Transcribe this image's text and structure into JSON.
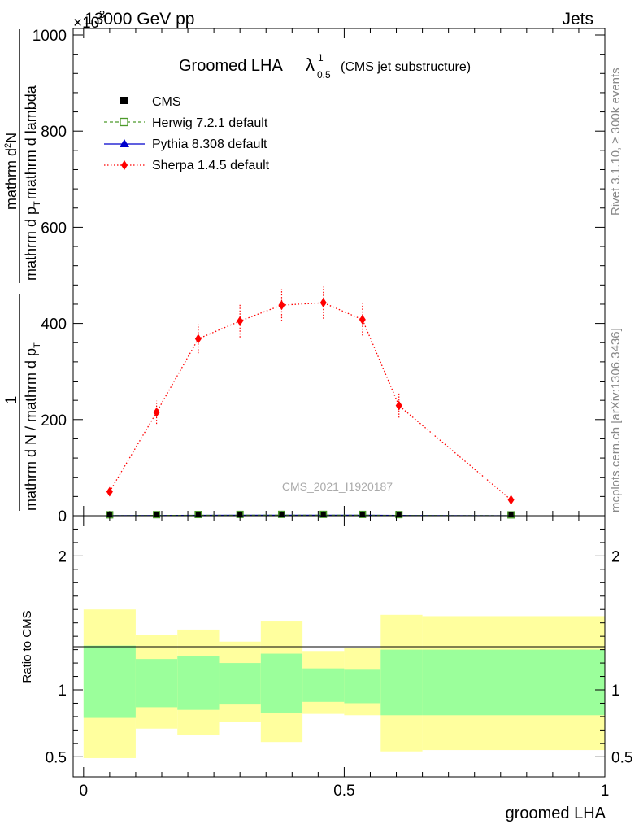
{
  "header": {
    "left": "13000 GeV pp",
    "right": "Jets",
    "exponent_base": "×10",
    "exponent_power": "3"
  },
  "title": {
    "main": "Groomed LHA",
    "lambda": "λ",
    "sup": "1",
    "sub": "0.5",
    "tail": "(CMS jet substructure)"
  },
  "side": {
    "rivet": "Rivet 3.1.10, ≥ 300k events",
    "mcplots": "mcplots.cern.ch [arXiv:1306.3436]"
  },
  "watermark": "CMS_2021_I1920187",
  "legend": [
    {
      "label": "CMS",
      "color": "#000000",
      "marker": "square-filled"
    },
    {
      "label": "Herwig 7.2.1 default",
      "color": "#4c9a2a",
      "marker": "square-open"
    },
    {
      "label": "Pythia 8.308 default",
      "color": "#0000cc",
      "marker": "triangle"
    },
    {
      "label": "Sherpa 1.4.5 default",
      "color": "#ff0000",
      "marker": "diamond"
    }
  ],
  "ylabel": {
    "numerator_1": "1",
    "denominator_1": "mathrm d N / mathrm d p",
    "denominator_1_sub": "T",
    "numerator_2": "mathrm d",
    "numerator_2_sup": "2",
    "numerator_2_tail": "N",
    "denominator_2": "mathrm d p",
    "denominator_2_sub": "T",
    "denominator_2_tail": "mathrm d lambda"
  },
  "ratio_ylabel": "Ratio to CMS",
  "xlabel": "groomed LHA",
  "chart_data": {
    "type": "line",
    "main": {
      "xlim": [
        -0.02,
        1.0
      ],
      "ylim": [
        0,
        1000
      ],
      "yscale_note": "×10^3",
      "yticks": [
        0,
        200,
        400,
        600,
        800,
        1000
      ],
      "ytick_labels": [
        "0",
        "200",
        "400",
        "600",
        "800",
        "1000"
      ],
      "series": [
        {
          "name": "Sherpa 1.4.5 default",
          "style": "dotted",
          "x": [
            0.05,
            0.14,
            0.22,
            0.3,
            0.38,
            0.46,
            0.535,
            0.605,
            0.82
          ],
          "y": [
            50,
            215,
            368,
            405,
            438,
            443,
            408,
            229,
            33
          ],
          "yerr": [
            9,
            24,
            30,
            34,
            33,
            33,
            33,
            25,
            4
          ]
        },
        {
          "name": "CMS",
          "x": [
            0.05,
            0.14,
            0.22,
            0.3,
            0.38,
            0.46,
            0.535,
            0.605,
            0.82
          ],
          "y": [
            0.2,
            0.5,
            0.8,
            1.0,
            1.1,
            1.1,
            1.0,
            0.6,
            0.08
          ]
        },
        {
          "name": "Herwig 7.2.1 default",
          "style": "dashed",
          "x": [
            0.05,
            0.14,
            0.22,
            0.3,
            0.38,
            0.46,
            0.535,
            0.605,
            0.82
          ],
          "y": [
            0.2,
            0.5,
            0.8,
            1.0,
            1.1,
            1.1,
            1.0,
            0.6,
            0.08
          ]
        },
        {
          "name": "Pythia 8.308 default",
          "style": "solid",
          "x": [
            0.05,
            0.14,
            0.22,
            0.3,
            0.38,
            0.46,
            0.535,
            0.605,
            0.82
          ],
          "y": [
            0.2,
            0.5,
            0.8,
            1.0,
            1.1,
            1.1,
            1.0,
            0.6,
            0.08
          ]
        }
      ]
    },
    "ratio": {
      "ylim": [
        0.35,
        2.3
      ],
      "yticks": [
        0.5,
        1,
        2
      ],
      "ytick_labels": [
        "0.5",
        "1",
        "2"
      ],
      "xticks": [
        0,
        0.5,
        1
      ],
      "xtick_labels": [
        "0",
        "0.5",
        "1"
      ],
      "bands": [
        {
          "x0": 0.0,
          "x1": 0.1,
          "stat_lo": 0.79,
          "stat_hi": 1.33,
          "tot_lo": 0.49,
          "tot_hi": 1.6
        },
        {
          "x0": 0.1,
          "x1": 0.18,
          "stat_lo": 0.87,
          "stat_hi": 1.23,
          "tot_lo": 0.71,
          "tot_hi": 1.41
        },
        {
          "x0": 0.18,
          "x1": 0.26,
          "stat_lo": 0.85,
          "stat_hi": 1.25,
          "tot_lo": 0.66,
          "tot_hi": 1.45
        },
        {
          "x0": 0.26,
          "x1": 0.34,
          "stat_lo": 0.89,
          "stat_hi": 1.2,
          "tot_lo": 0.76,
          "tot_hi": 1.36
        },
        {
          "x0": 0.34,
          "x1": 0.42,
          "stat_lo": 0.83,
          "stat_hi": 1.27,
          "tot_lo": 0.61,
          "tot_hi": 1.51
        },
        {
          "x0": 0.42,
          "x1": 0.5,
          "stat_lo": 0.91,
          "stat_hi": 1.16,
          "tot_lo": 0.82,
          "tot_hi": 1.29
        },
        {
          "x0": 0.5,
          "x1": 0.57,
          "stat_lo": 0.9,
          "stat_hi": 1.15,
          "tot_lo": 0.81,
          "tot_hi": 1.31
        },
        {
          "x0": 0.57,
          "x1": 0.65,
          "stat_lo": 0.81,
          "stat_hi": 1.3,
          "tot_lo": 0.54,
          "tot_hi": 1.56
        },
        {
          "x0": 0.65,
          "x1": 1.0,
          "stat_lo": 0.81,
          "stat_hi": 1.3,
          "tot_lo": 0.55,
          "tot_hi": 1.55
        }
      ]
    },
    "colors": {
      "stat_band": "#9bff9b",
      "total_band": "#ffff9e"
    }
  }
}
